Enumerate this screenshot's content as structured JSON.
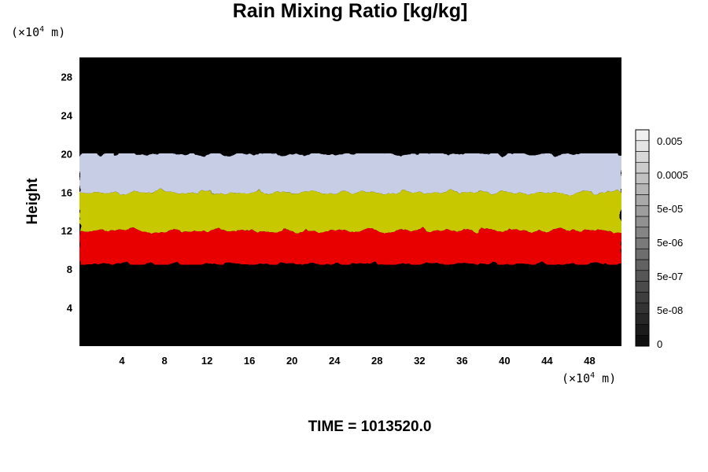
{
  "chart_data": {
    "type": "heatmap",
    "title": "Rain Mixing Ratio [kg/kg]",
    "ylabel": "Height",
    "x_unit_prefix": "(×10",
    "x_unit_exp": "4",
    "x_unit_suffix": " m)",
    "y_unit_prefix": "(×10",
    "y_unit_exp": "4",
    "y_unit_suffix": " m)",
    "xlim": [
      0,
      51
    ],
    "ylim": [
      0,
      30
    ],
    "x_ticks": [
      4,
      8,
      12,
      16,
      20,
      24,
      28,
      32,
      36,
      40,
      44,
      48
    ],
    "y_ticks": [
      4,
      8,
      12,
      16,
      20,
      24,
      28
    ],
    "layers": [
      {
        "name": "white",
        "color": "#c8cde6",
        "bottom": 16,
        "top": 20
      },
      {
        "name": "yellow",
        "color": "#c8c800",
        "bottom": 12,
        "top": 16
      },
      {
        "name": "red",
        "color": "#e80000",
        "bottom": 8.5,
        "top": 12
      }
    ],
    "background": "#000000",
    "colorbar": {
      "ticks": [
        "0.005",
        "0.0005",
        "5e-05",
        "5e-06",
        "5e-07",
        "5e-08",
        "0"
      ],
      "levels": 20
    },
    "time_label": "TIME = 1013520.0"
  }
}
